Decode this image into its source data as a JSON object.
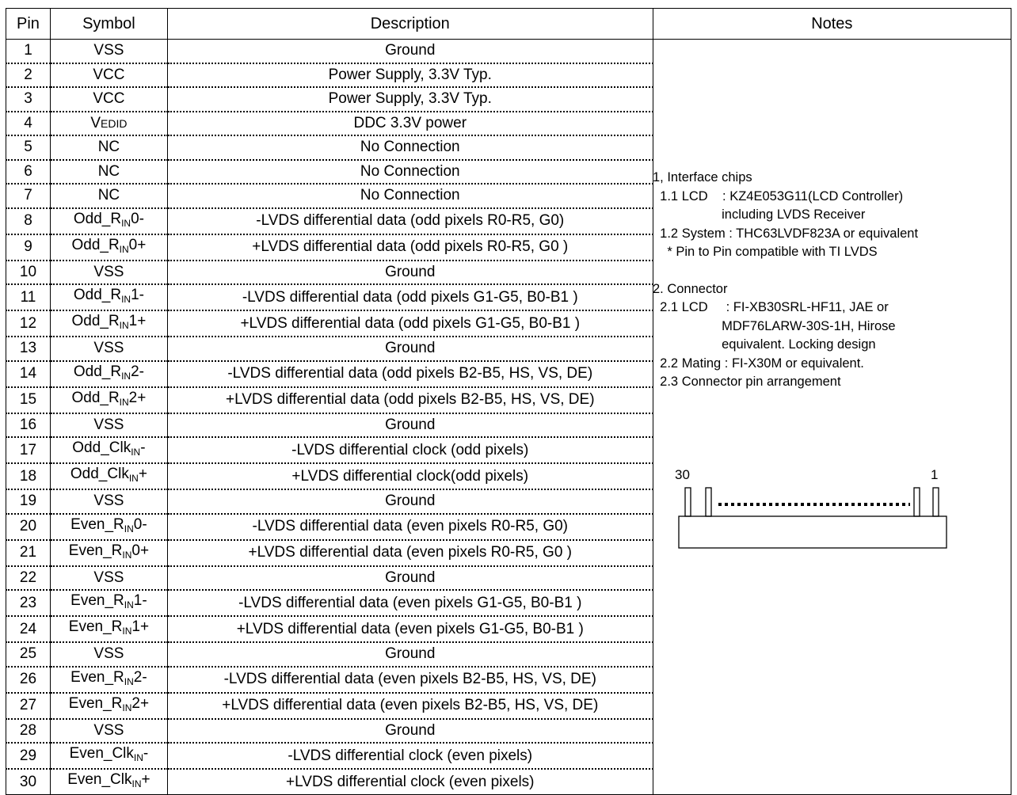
{
  "table": {
    "headers": {
      "pin": "Pin",
      "symbol": "Symbol",
      "description": "Description",
      "notes": "Notes"
    },
    "rows": [
      {
        "pin": "1",
        "symbol": "VSS",
        "description": "Ground"
      },
      {
        "pin": "2",
        "symbol": "VCC",
        "description": "Power Supply, 3.3V Typ."
      },
      {
        "pin": "3",
        "symbol": "VCC",
        "description": "Power Supply, 3.3V Typ."
      },
      {
        "pin": "4",
        "symbol_main": "V",
        "symbol_sub": "EDID",
        "description": "DDC 3.3V power"
      },
      {
        "pin": "5",
        "symbol": "NC",
        "description": "No Connection"
      },
      {
        "pin": "6",
        "symbol": "NC",
        "description": "No Connection"
      },
      {
        "pin": "7",
        "symbol": "NC",
        "description": "No Connection"
      },
      {
        "pin": "8",
        "symbol_pre": "Odd_R",
        "symbol_sub": "IN",
        "symbol_post": "0-",
        "description": "-LVDS differential data (odd pixels R0-R5, G0)"
      },
      {
        "pin": "9",
        "symbol_pre": "Odd_R",
        "symbol_sub": "IN",
        "symbol_post": "0+",
        "description": "+LVDS differential data (odd pixels R0-R5, G0 )"
      },
      {
        "pin": "10",
        "symbol": "VSS",
        "description": "Ground"
      },
      {
        "pin": "11",
        "symbol_pre": "Odd_R",
        "symbol_sub": "IN",
        "symbol_post": "1-",
        "description": "-LVDS differential data (odd pixels G1-G5, B0-B1 )"
      },
      {
        "pin": "12",
        "symbol_pre": "Odd_R",
        "symbol_sub": "IN",
        "symbol_post": "1+",
        "description": "+LVDS differential data (odd pixels G1-G5, B0-B1 )"
      },
      {
        "pin": "13",
        "symbol": "VSS",
        "description": "Ground"
      },
      {
        "pin": "14",
        "symbol_pre": "Odd_R",
        "symbol_sub": "IN",
        "symbol_post": "2-",
        "description": "-LVDS differential data (odd pixels B2-B5, HS, VS, DE)"
      },
      {
        "pin": "15",
        "symbol_pre": "Odd_R",
        "symbol_sub": "IN",
        "symbol_post": "2+",
        "description": "+LVDS differential data (odd pixels B2-B5, HS, VS, DE)"
      },
      {
        "pin": "16",
        "symbol": "VSS",
        "description": "Ground"
      },
      {
        "pin": "17",
        "symbol_pre": "Odd_Clk",
        "symbol_sub": "IN",
        "symbol_post": "-",
        "description": "-LVDS differential clock (odd pixels)"
      },
      {
        "pin": "18",
        "symbol_pre": "Odd_Clk",
        "symbol_sub": "IN",
        "symbol_post": "+",
        "description": "+LVDS differential clock(odd pixels)"
      },
      {
        "pin": "19",
        "symbol": "VSS",
        "description": "Ground"
      },
      {
        "pin": "20",
        "symbol_pre": "Even_R",
        "symbol_sub": "IN",
        "symbol_post": "0-",
        "description": "-LVDS differential data (even pixels R0-R5, G0)"
      },
      {
        "pin": "21",
        "symbol_pre": "Even_R",
        "symbol_sub": "IN",
        "symbol_post": "0+",
        "description": "+LVDS differential data (even pixels R0-R5, G0 )"
      },
      {
        "pin": "22",
        "symbol": "VSS",
        "description": "Ground"
      },
      {
        "pin": "23",
        "symbol_pre": "Even_R",
        "symbol_sub": "IN",
        "symbol_post": "1-",
        "description": "-LVDS differential data (even pixels G1-G5, B0-B1 )"
      },
      {
        "pin": "24",
        "symbol_pre": "Even_R",
        "symbol_sub": "IN",
        "symbol_post": "1+",
        "description": "+LVDS differential data (even pixels G1-G5, B0-B1 )"
      },
      {
        "pin": "25",
        "symbol": "VSS",
        "description": "Ground"
      },
      {
        "pin": "26",
        "symbol_pre": "Even_R",
        "symbol_sub": "IN",
        "symbol_post": "2-",
        "description": "-LVDS differential data (even pixels B2-B5, HS, VS, DE)"
      },
      {
        "pin": "27",
        "symbol_pre": "Even_R",
        "symbol_sub": "IN",
        "symbol_post": "2+",
        "description": "+LVDS differential data (even pixels B2-B5, HS, VS, DE)"
      },
      {
        "pin": "28",
        "symbol": "VSS",
        "description": "Ground"
      },
      {
        "pin": "29",
        "symbol_pre": "Even_Clk",
        "symbol_sub": "IN",
        "symbol_post": "-",
        "description": "-LVDS differential clock (even pixels)"
      },
      {
        "pin": "30",
        "symbol_pre": "Even_Clk",
        "symbol_sub": "IN",
        "symbol_post": "+",
        "description": "+LVDS differential clock (even pixels)"
      }
    ]
  },
  "notes": {
    "lines": [
      "1, Interface chips",
      "  1.1 LCD    : KZ4E053G11(LCD Controller)",
      "                   including LVDS Receiver",
      "  1.2 System : THC63LVDF823A or equivalent",
      "    * Pin to Pin compatible with TI LVDS",
      "",
      "2. Connector",
      "  2.1 LCD     : FI-XB30SRL-HF11, JAE or",
      "                   MDF76LARW-30S-1H, Hirose",
      "                   equivalent. Locking design",
      "  2.2 Mating : FI-X30M or equivalent.",
      "  2.3 Connector pin arrangement"
    ],
    "connector": {
      "left_label": "30",
      "right_label": "1"
    }
  }
}
